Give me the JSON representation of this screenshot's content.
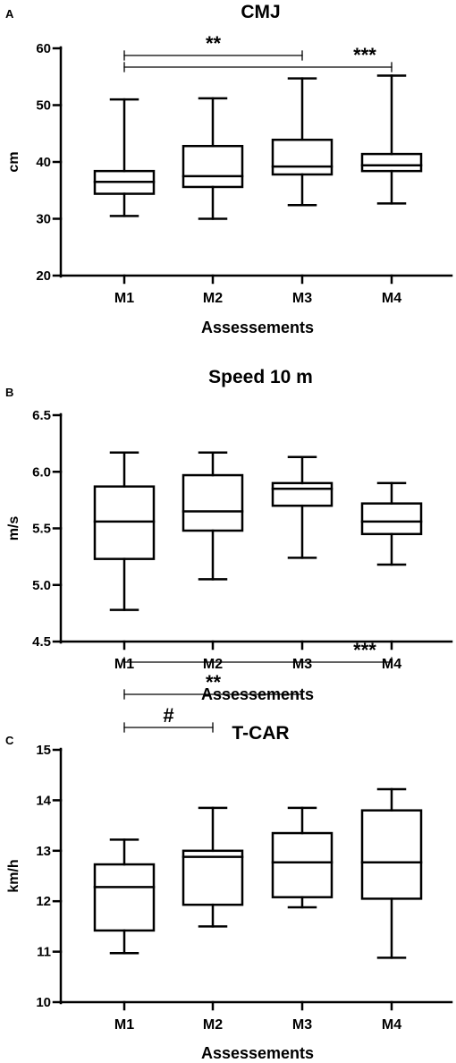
{
  "chart_data": [
    {
      "type": "box",
      "panel": "A",
      "title": "CMJ",
      "xlabel": "Assessements",
      "ylabel": "cm",
      "ylim": [
        20,
        60
      ],
      "yticks": [
        "20",
        "30",
        "40",
        "50",
        "60"
      ],
      "categories": [
        "M1",
        "M2",
        "M3",
        "M4"
      ],
      "boxes": [
        {
          "min": 30.5,
          "q1": 34.4,
          "median": 36.5,
          "q3": 38.4,
          "max": 51.0
        },
        {
          "min": 30.0,
          "q1": 35.6,
          "median": 37.5,
          "q3": 42.8,
          "max": 51.2
        },
        {
          "min": 32.4,
          "q1": 37.8,
          "median": 39.2,
          "q3": 43.9,
          "max": 54.7
        },
        {
          "min": 32.7,
          "q1": 38.4,
          "median": 39.4,
          "q3": 41.4,
          "max": 55.2
        }
      ],
      "significance": [
        {
          "from": "M1",
          "to": "M3",
          "label": "**"
        },
        {
          "from": "M1",
          "to": "M4",
          "label": "***"
        }
      ]
    },
    {
      "type": "box",
      "panel": "B",
      "title": "Speed 10 m",
      "xlabel": "Assessements",
      "ylabel": "m/s",
      "ylim": [
        4.5,
        6.5
      ],
      "yticks": [
        "4.5",
        "5.0",
        "5.5",
        "6.0",
        "6.5"
      ],
      "categories": [
        "M1",
        "M2",
        "M3",
        "M4"
      ],
      "boxes": [
        {
          "min": 4.78,
          "q1": 5.23,
          "median": 5.56,
          "q3": 5.87,
          "max": 6.17
        },
        {
          "min": 5.05,
          "q1": 5.48,
          "median": 5.65,
          "q3": 5.97,
          "max": 6.17
        },
        {
          "min": 5.24,
          "q1": 5.7,
          "median": 5.85,
          "q3": 5.9,
          "max": 6.13
        },
        {
          "min": 5.18,
          "q1": 5.45,
          "median": 5.56,
          "q3": 5.72,
          "max": 5.9
        }
      ],
      "significance": []
    },
    {
      "type": "box",
      "panel": "C",
      "title": "T-CAR",
      "xlabel": "Assessements",
      "ylabel": "km/h",
      "ylim": [
        10,
        15
      ],
      "yticks": [
        "10",
        "11",
        "12",
        "13",
        "14",
        "15"
      ],
      "categories": [
        "M1",
        "M2",
        "M3",
        "M4"
      ],
      "boxes": [
        {
          "min": 10.97,
          "q1": 11.42,
          "median": 12.28,
          "q3": 12.73,
          "max": 13.22
        },
        {
          "min": 11.5,
          "q1": 11.93,
          "median": 12.88,
          "q3": 13.0,
          "max": 13.85
        },
        {
          "min": 11.88,
          "q1": 12.08,
          "median": 12.77,
          "q3": 13.35,
          "max": 13.85
        },
        {
          "min": 10.88,
          "q1": 12.05,
          "median": 12.77,
          "q3": 13.8,
          "max": 14.22
        }
      ],
      "significance": [
        {
          "from": "M1",
          "to": "M2",
          "label": "#"
        },
        {
          "from": "M1",
          "to": "M3",
          "label": "**"
        },
        {
          "from": "M1",
          "to": "M4",
          "label": "***"
        }
      ]
    }
  ]
}
